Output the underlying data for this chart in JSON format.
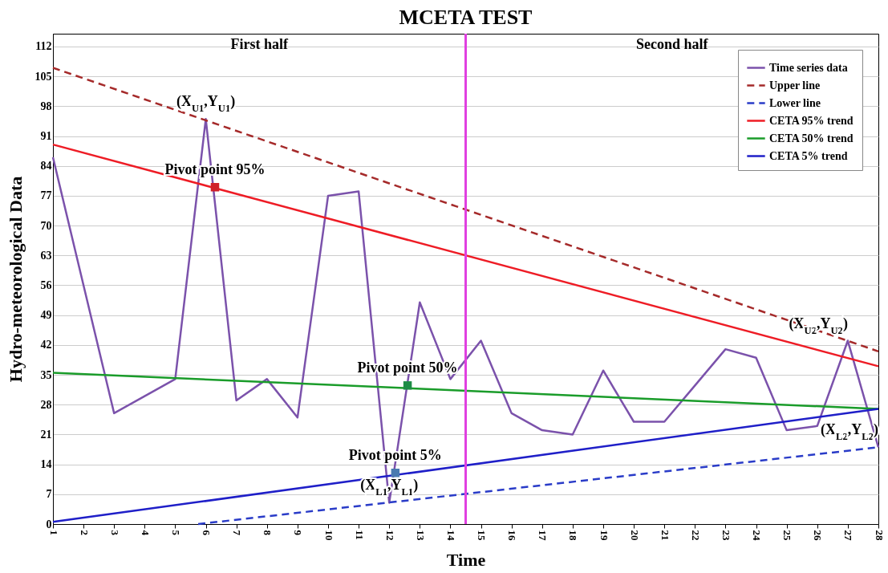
{
  "chart_data": {
    "type": "line",
    "title": "MCETA TEST",
    "xlabel": "Time",
    "ylabel": "Hydro-meteorological Data",
    "xlim": [
      1,
      28
    ],
    "xticks": [
      1,
      2,
      3,
      4,
      5,
      6,
      7,
      8,
      9,
      10,
      11,
      12,
      13,
      14,
      15,
      16,
      17,
      18,
      19,
      20,
      21,
      22,
      23,
      24,
      25,
      26,
      27,
      28
    ],
    "ylim": [
      0,
      115
    ],
    "yticks": [
      0,
      7,
      14,
      21,
      28,
      35,
      42,
      49,
      56,
      63,
      70,
      77,
      84,
      91,
      98,
      105,
      112
    ],
    "grid": "y",
    "legend": "top right",
    "series": [
      {
        "name": "Time series data",
        "color": "#7b52ab",
        "line_style": "solid",
        "x": [
          1,
          2,
          3,
          4,
          5,
          6,
          7,
          8,
          9,
          10,
          11,
          12,
          13,
          14,
          15,
          16,
          17,
          18,
          19,
          20,
          21,
          22,
          23,
          24,
          25,
          26,
          27,
          28
        ],
        "values": [
          86,
          56,
          26,
          30,
          34,
          95,
          29,
          34,
          25,
          77,
          78,
          5,
          52,
          34,
          43,
          26,
          22,
          21,
          36,
          24,
          24,
          32.5,
          41,
          39,
          22,
          23,
          43,
          18
        ]
      },
      {
        "name": "Upper  line",
        "color": "#a52a2a",
        "line_style": "dashed",
        "x": [
          1,
          28
        ],
        "values": [
          107,
          40.5
        ]
      },
      {
        "name": "Lower line",
        "color": "#2a3cc8",
        "line_style": "dashed",
        "x": [
          5.75,
          28
        ],
        "values": [
          0,
          18
        ]
      },
      {
        "name": "CETA 95% trend",
        "color": "#ee1c25",
        "line_style": "solid",
        "x": [
          1,
          28
        ],
        "values": [
          89,
          37
        ]
      },
      {
        "name": "CETA 50% trend",
        "color": "#1a9c2a",
        "line_style": "solid",
        "x": [
          1,
          28
        ],
        "values": [
          35.5,
          27
        ]
      },
      {
        "name": "CETA 5% trend",
        "color": "#1f1fc8",
        "line_style": "solid",
        "x": [
          1,
          28
        ],
        "values": [
          0.5,
          27
        ]
      },
      {
        "type": "scatter",
        "marker": "square",
        "color": "#d0202a",
        "x": [
          6.3
        ],
        "values": [
          79
        ]
      },
      {
        "type": "scatter",
        "marker": "square",
        "color": "#1e8c46",
        "x": [
          12.6
        ],
        "values": [
          32.5
        ]
      },
      {
        "type": "scatter",
        "marker": "square",
        "color": "#4a7ab0",
        "x": [
          12.2
        ],
        "values": [
          12
        ]
      }
    ],
    "ref_lines": [
      {
        "axis": "x",
        "value": 14.5,
        "color": "#e040e0"
      }
    ],
    "annotations": [
      "First half",
      "Second half",
      {
        "text": "Pivot point 95%",
        "x": 6.3,
        "y": 79
      },
      {
        "text": "Pivot point 50%",
        "x": 12.6,
        "y": 32.5
      },
      {
        "text": "Pivot point 5%",
        "x": 12.2,
        "y": 12
      },
      {
        "text": "(X$_{U1}$,Y$_{U1}$)",
        "x": 6,
        "y": 95
      },
      {
        "text": "(X$_{U2}$,Y$_{U2}$)",
        "x": 27,
        "y": 43
      },
      {
        "text": "(X$_{L1}$,Y$_{L1}$)",
        "x": 12,
        "y": 5
      },
      {
        "text": "(X$_{L2}$,Y$_{L2}$)",
        "x": 28,
        "y": 18
      }
    ]
  }
}
